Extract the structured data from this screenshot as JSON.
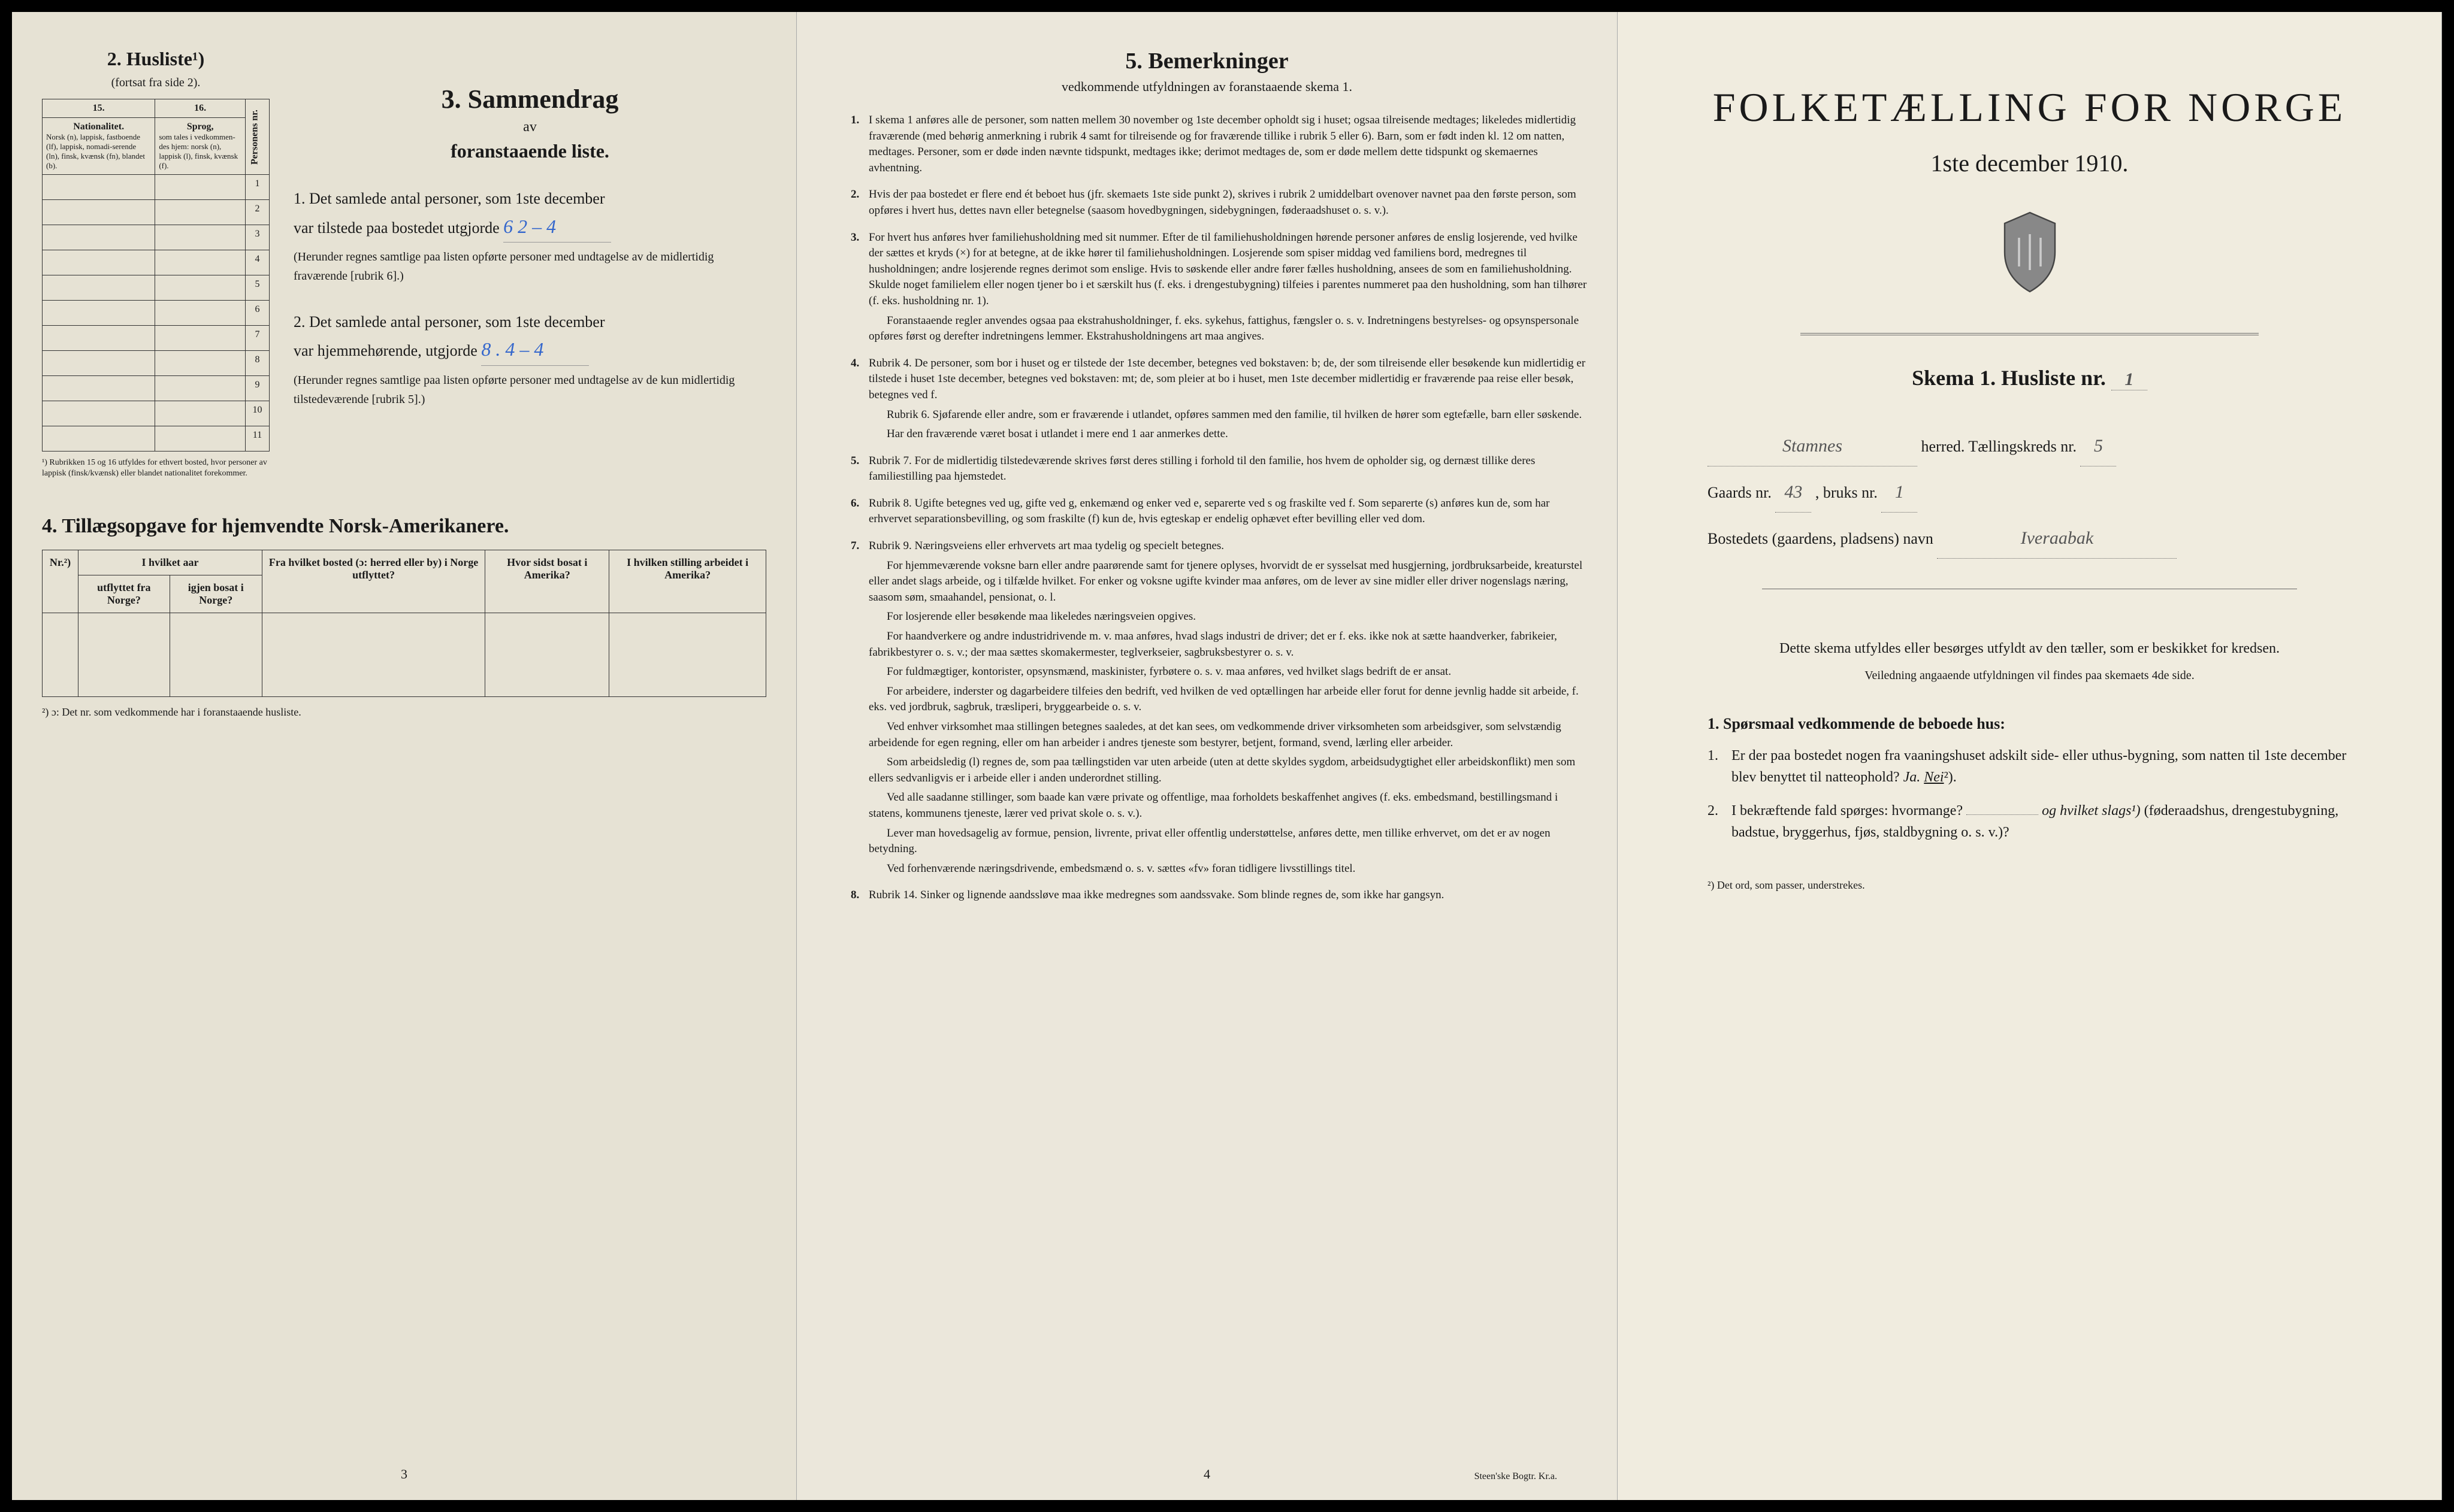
{
  "page1": {
    "husliste": {
      "heading": "2.  Husliste¹)",
      "subheading": "(fortsat fra side 2).",
      "col15": "15.",
      "col16": "16.",
      "header15": "Nationalitet.",
      "header15_detail": "Norsk (n), lappisk, fastboende (lf), lappisk, nomadi-serende (ln), finsk, kvænsk (fn), blandet (b).",
      "header16": "Sprog,",
      "header16_detail": "som tales i vedkommen-des hjem: norsk (n), lappisk (l), finsk, kvænsk (f).",
      "header_personnr": "Personens nr.",
      "rows": [
        "1",
        "2",
        "3",
        "4",
        "5",
        "6",
        "7",
        "8",
        "9",
        "10",
        "11"
      ],
      "footnote": "¹) Rubrikken 15 og 16 utfyldes for ethvert bosted, hvor personer av lappisk (finsk/kvænsk) eller blandet nationalitet forekommer."
    },
    "sammendrag": {
      "title": "3.  Sammendrag",
      "sub1": "av",
      "sub2": "foranstaaende liste.",
      "item1_prefix": "1.  Det samlede antal personer, som 1ste december",
      "item1_line2": "var tilstede paa bostedet utgjorde",
      "item1_value": "6   2 – 4",
      "item1_note": "(Herunder regnes samtlige paa listen opførte personer med undtagelse av de midlertidig fraværende [rubrik 6].)",
      "item2_prefix": "2.  Det samlede antal personer, som 1ste december",
      "item2_line2": "var hjemmehørende, utgjorde",
      "item2_value": "8 . 4 – 4",
      "item2_note": "(Herunder regnes samtlige paa listen opførte personer med undtagelse av de kun midlertidig tilstedeværende [rubrik 5].)"
    },
    "tillaeg": {
      "title": "4.  Tillægsopgave for hjemvendte Norsk-Amerikanere.",
      "col1": "Nr.²)",
      "col2a": "I hvilket aar",
      "col2b": "utflyttet fra Norge?",
      "col2c": "igjen bosat i Norge?",
      "col3": "Fra hvilket bosted (ɔ: herred eller by) i Norge utflyttet?",
      "col4": "Hvor sidst bosat i Amerika?",
      "col5": "I hvilken stilling arbeidet i Amerika?",
      "footnote": "²) ɔ: Det nr. som vedkommende har i foranstaaende husliste."
    },
    "pagenum": "3"
  },
  "page2": {
    "title": "5.  Bemerkninger",
    "sub": "vedkommende utfyldningen av foranstaaende skema 1.",
    "items": [
      {
        "n": "1.",
        "t": "I skema 1 anføres alle de personer, som natten mellem 30 november og 1ste december opholdt sig i huset; ogsaa tilreisende medtages; likeledes midlertidig fraværende (med behørig anmerkning i rubrik 4 samt for tilreisende og for fraværende tillike i rubrik 5 eller 6). Barn, som er født inden kl. 12 om natten, medtages. Personer, som er døde inden nævnte tidspunkt, medtages ikke; derimot medtages de, som er døde mellem dette tidspunkt og skemaernes avhentning."
      },
      {
        "n": "2.",
        "t": "Hvis der paa bostedet er flere end ét beboet hus (jfr. skemaets 1ste side punkt 2), skrives i rubrik 2 umiddelbart ovenover navnet paa den første person, som opføres i hvert hus, dettes navn eller betegnelse (saasom hovedbygningen, sidebygningen, føderaadshuset o. s. v.)."
      },
      {
        "n": "3.",
        "t": "For hvert hus anføres hver familiehusholdning med sit nummer. Efter de til familiehusholdningen hørende personer anføres de enslig losjerende, ved hvilke der sættes et kryds (×) for at betegne, at de ikke hører til familiehusholdningen. Losjerende som spiser middag ved familiens bord, medregnes til husholdningen; andre losjerende regnes derimot som enslige. Hvis to søskende eller andre fører fælles husholdning, ansees de som en familiehusholdning. Skulde noget familielem eller nogen tjener bo i et særskilt hus (f. eks. i drengestubygning) tilfeies i parentes nummeret paa den husholdning, som han tilhører (f. eks. husholdning nr. 1).",
        "extra": [
          "Foranstaaende regler anvendes ogsaa paa ekstrahusholdninger, f. eks. sykehus, fattighus, fængsler o. s. v. Indretningens bestyrelses- og opsynspersonale opføres først og derefter indretningens lemmer. Ekstrahusholdningens art maa angives."
        ]
      },
      {
        "n": "4.",
        "t": "Rubrik 4. De personer, som bor i huset og er tilstede der 1ste december, betegnes ved bokstaven: b; de, der som tilreisende eller besøkende kun midlertidig er tilstede i huset 1ste december, betegnes ved bokstaven: mt; de, som pleier at bo i huset, men 1ste december midlertidig er fraværende paa reise eller besøk, betegnes ved f.",
        "extra": [
          "Rubrik 6. Sjøfarende eller andre, som er fraværende i utlandet, opføres sammen med den familie, til hvilken de hører som egtefælle, barn eller søskende.",
          "Har den fraværende været bosat i utlandet i mere end 1 aar anmerkes dette."
        ]
      },
      {
        "n": "5.",
        "t": "Rubrik 7. For de midlertidig tilstedeværende skrives først deres stilling i forhold til den familie, hos hvem de opholder sig, og dernæst tillike deres familiestilling paa hjemstedet."
      },
      {
        "n": "6.",
        "t": "Rubrik 8. Ugifte betegnes ved ug, gifte ved g, enkemænd og enker ved e, separerte ved s og fraskilte ved f. Som separerte (s) anføres kun de, som har erhvervet separationsbevilling, og som fraskilte (f) kun de, hvis egteskap er endelig ophævet efter bevilling eller ved dom."
      },
      {
        "n": "7.",
        "t": "Rubrik 9. Næringsveiens eller erhvervets art maa tydelig og specielt betegnes.",
        "extra": [
          "For hjemmeværende voksne barn eller andre paarørende samt for tjenere oplyses, hvorvidt de er sysselsat med husgjerning, jordbruksarbeide, kreaturstel eller andet slags arbeide, og i tilfælde hvilket. For enker og voksne ugifte kvinder maa anføres, om de lever av sine midler eller driver nogenslags næring, saasom søm, smaahandel, pensionat, o. l.",
          "For losjerende eller besøkende maa likeledes næringsveien opgives.",
          "For haandverkere og andre industridrivende m. v. maa anføres, hvad slags industri de driver; det er f. eks. ikke nok at sætte haandverker, fabrikeier, fabrikbestyrer o. s. v.; der maa sættes skomakermester, teglverkseier, sagbruksbestyrer o. s. v.",
          "For fuldmægtiger, kontorister, opsynsmænd, maskinister, fyrbøtere o. s. v. maa anføres, ved hvilket slags bedrift de er ansat.",
          "For arbeidere, inderster og dagarbeidere tilfeies den bedrift, ved hvilken de ved optællingen har arbeide eller forut for denne jevnlig hadde sit arbeide, f. eks. ved jordbruk, sagbruk, træsliperi, bryggearbeide o. s. v.",
          "Ved enhver virksomhet maa stillingen betegnes saaledes, at det kan sees, om vedkommende driver virksomheten som arbeidsgiver, som selvstændig arbeidende for egen regning, eller om han arbeider i andres tjeneste som bestyrer, betjent, formand, svend, lærling eller arbeider.",
          "Som arbeidsledig (l) regnes de, som paa tællingstiden var uten arbeide (uten at dette skyldes sygdom, arbeidsudygtighet eller arbeidskonflikt) men som ellers sedvanligvis er i arbeide eller i anden underordnet stilling.",
          "Ved alle saadanne stillinger, som baade kan være private og offentlige, maa forholdets beskaffenhet angives (f. eks. embedsmand, bestillingsmand i statens, kommunens tjeneste, lærer ved privat skole o. s. v.).",
          "Lever man hovedsagelig av formue, pension, livrente, privat eller offentlig understøttelse, anføres dette, men tillike erhvervet, om det er av nogen betydning.",
          "Ved forhenværende næringsdrivende, embedsmænd o. s. v. sættes «fv» foran tidligere livsstillings titel."
        ]
      },
      {
        "n": "8.",
        "t": "Rubrik 14. Sinker og lignende aandssløve maa ikke medregnes som aandssvake. Som blinde regnes de, som ikke har gangsyn."
      }
    ],
    "pagenum": "4",
    "printer": "Steen'ske Bogtr.  Kr.a."
  },
  "page3": {
    "title": "FOLKETÆLLING FOR NORGE",
    "date": "1ste december 1910.",
    "skema": "Skema 1.  Husliste nr.",
    "husliste_nr": "1",
    "herred_prefix": "",
    "herred_value": "Stamnes",
    "herred_suffix": "herred.  Tællingskreds nr.",
    "kreds_nr": "5",
    "gaards_prefix": "Gaards nr.",
    "gaards_nr": "43",
    "bruks_prefix": ", bruks nr.",
    "bruks_nr": "1",
    "bosted_prefix": "Bostedets (gaardens, pladsens) navn",
    "bosted_value": "Iveraabak",
    "instruction": "Dette skema utfyldes eller besørges utfyldt av den tæller, som er beskikket for kredsen.",
    "instruction_sub": "Veiledning angaaende utfyldningen vil findes paa skemaets 4de side.",
    "sporsmaal_heading": "1. Spørsmaal vedkommende de beboede hus:",
    "sp1_num": "1.",
    "sp1": "Er der paa bostedet nogen fra vaaningshuset adskilt side- eller uthus-bygning, som natten til 1ste december blev benyttet til natteophold?",
    "sp1_ja": "Ja.",
    "sp1_nei": "Nei",
    "sp1_sup": "²).",
    "sp2_num": "2.",
    "sp2": "I bekræftende fald spørges: hvormange?",
    "sp2_mid": "og hvilket slags¹)",
    "sp2_suffix": "(føderaadshus, drengestubygning, badstue, bryggerhus, fjøs, staldbygning o. s. v.)?",
    "footnote": "²) Det ord, som passer, understrekes."
  }
}
